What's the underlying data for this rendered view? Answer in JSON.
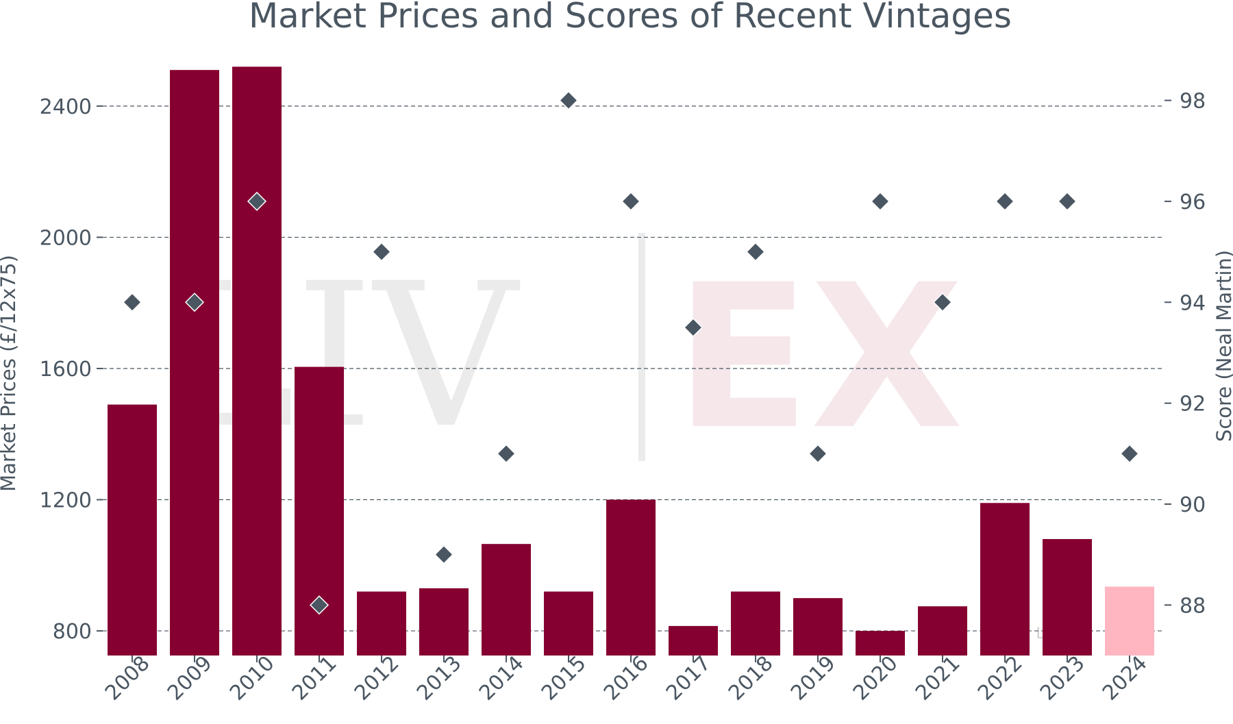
{
  "chart_data": {
    "type": "bar",
    "title": "Market Prices and Scores of Recent Vintages",
    "categories": [
      "2008",
      "2009",
      "2010",
      "2011",
      "2012",
      "2013",
      "2014",
      "2015",
      "2016",
      "2017",
      "2018",
      "2019",
      "2020",
      "2021",
      "2022",
      "2023",
      "2024"
    ],
    "series": [
      {
        "kind": "bar",
        "axis": "left",
        "values": [
          1490,
          2510,
          2520,
          1605,
          920,
          930,
          1065,
          920,
          1200,
          815,
          920,
          900,
          800,
          875,
          1190,
          1080,
          935
        ],
        "colors": [
          "#850030",
          "#850030",
          "#850030",
          "#850030",
          "#850030",
          "#850030",
          "#850030",
          "#850030",
          "#850030",
          "#850030",
          "#850030",
          "#850030",
          "#850030",
          "#850030",
          "#850030",
          "#850030",
          "#ffb6c1"
        ]
      },
      {
        "kind": "scatter",
        "axis": "right",
        "marker": "diamond",
        "values": [
          94,
          94,
          96,
          88,
          95,
          89,
          91,
          98,
          96,
          93.5,
          95,
          91,
          96,
          94,
          96,
          96,
          91
        ],
        "color": "#4a5661"
      }
    ],
    "ylabel": "Market Prices (£/12x75)",
    "ylabel_right": "Score (Neal Martin)",
    "xlabel": "",
    "ylim": [
      725,
      2525
    ],
    "ylim_right": [
      87,
      98.7
    ],
    "yticks": [
      800,
      1200,
      1600,
      2000,
      2400
    ],
    "yticks_right": [
      88,
      90,
      92,
      94,
      96,
      98
    ],
    "grid": true,
    "watermark": {
      "left": "LIV",
      "right": "EX",
      "caption": "Liv-ex"
    }
  }
}
